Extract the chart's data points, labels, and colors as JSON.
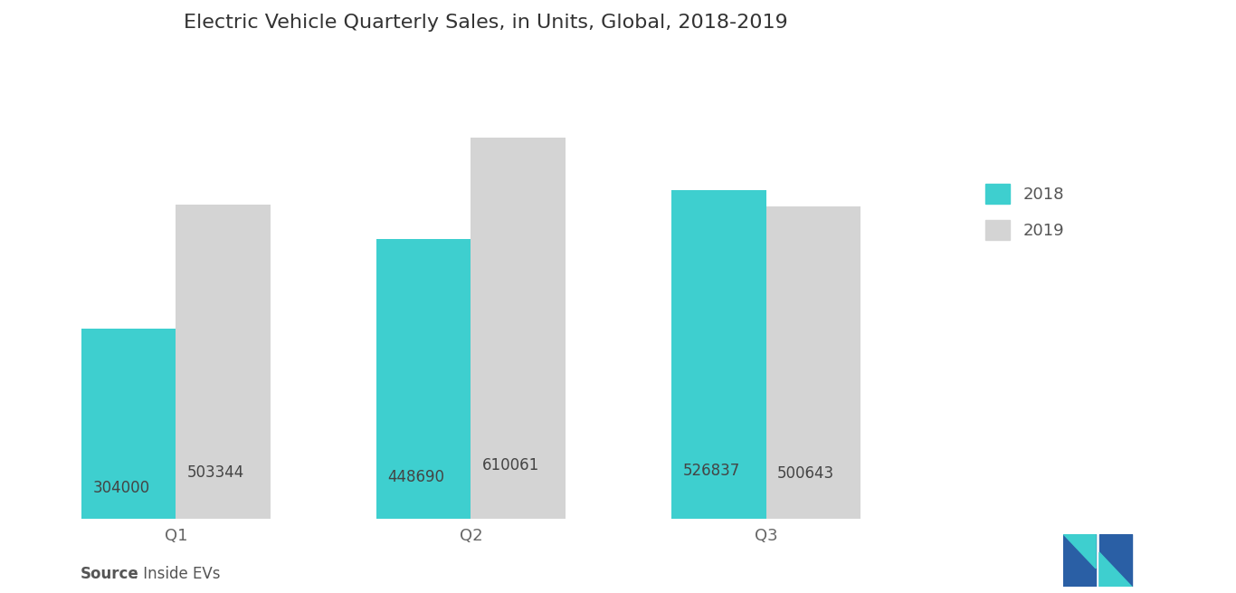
{
  "title": "Electric Vehicle Quarterly Sales, in Units, Global, 2018-2019",
  "categories": [
    "Q1",
    "Q2",
    "Q3"
  ],
  "values_2018": [
    304000,
    448690,
    526837
  ],
  "values_2019": [
    503344,
    610061,
    500643
  ],
  "color_2018": "#3ecfcf",
  "color_2019": "#d4d4d4",
  "bar_width": 0.32,
  "label_2018": "2018",
  "label_2019": "2019",
  "source_bold": "Source",
  "source_rest": " : Inside EVs",
  "background_color": "#ffffff",
  "title_fontsize": 16,
  "tick_fontsize": 13,
  "source_fontsize": 12,
  "legend_fontsize": 13,
  "bar_label_fontsize": 12,
  "ylim_max": 750000
}
